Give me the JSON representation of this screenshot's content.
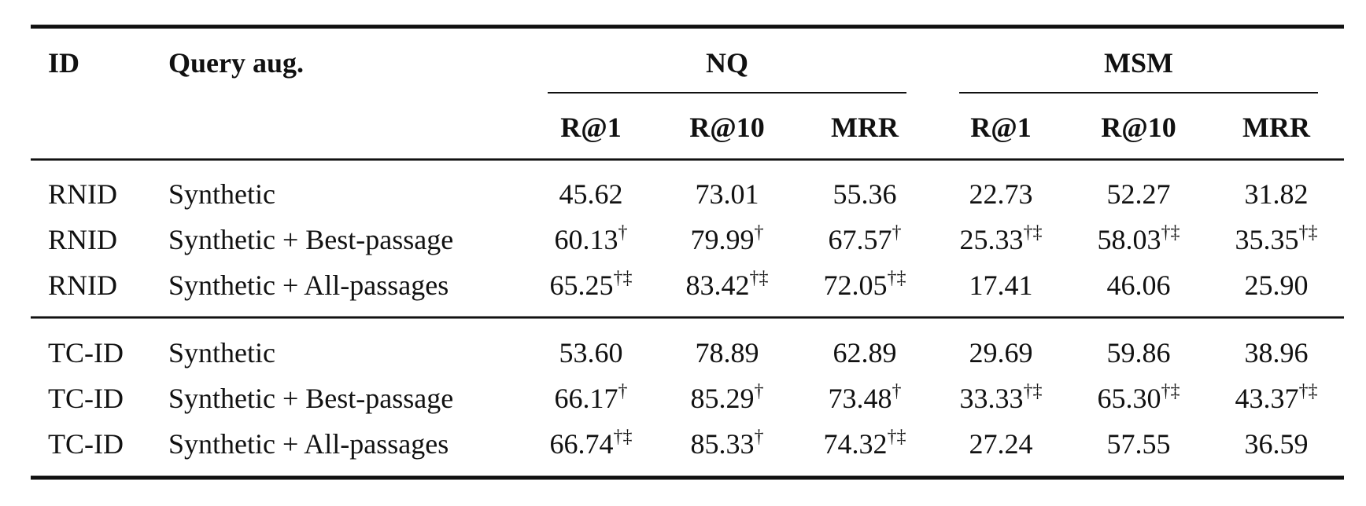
{
  "table": {
    "headers": {
      "id": "ID",
      "query": "Query aug.",
      "groups": [
        "NQ",
        "MSM"
      ],
      "metrics": [
        "R@1",
        "R@10",
        "MRR",
        "R@1",
        "R@10",
        "MRR"
      ]
    },
    "row_groups": [
      [
        {
          "id": "RNID",
          "query": "Synthetic",
          "cells": [
            {
              "v": "45.62"
            },
            {
              "v": "73.01"
            },
            {
              "v": "55.36"
            },
            {
              "v": "22.73"
            },
            {
              "v": "52.27"
            },
            {
              "v": "31.82"
            }
          ]
        },
        {
          "id": "RNID",
          "query": "Synthetic + Best-passage",
          "cells": [
            {
              "v": "60.13",
              "sup": "†"
            },
            {
              "v": "79.99",
              "sup": "†"
            },
            {
              "v": "67.57",
              "sup": "†"
            },
            {
              "v": "25.33",
              "sup": "†‡"
            },
            {
              "v": "58.03",
              "sup": "†‡"
            },
            {
              "v": "35.35",
              "sup": "†‡"
            }
          ]
        },
        {
          "id": "RNID",
          "query": "Synthetic + All-passages",
          "cells": [
            {
              "v": "65.25",
              "sup": "†‡"
            },
            {
              "v": "83.42",
              "sup": "†‡"
            },
            {
              "v": "72.05",
              "sup": "†‡"
            },
            {
              "v": "17.41"
            },
            {
              "v": "46.06"
            },
            {
              "v": "25.90"
            }
          ]
        }
      ],
      [
        {
          "id": "TC-ID",
          "query": "Synthetic",
          "cells": [
            {
              "v": "53.60"
            },
            {
              "v": "78.89"
            },
            {
              "v": "62.89"
            },
            {
              "v": "29.69"
            },
            {
              "v": "59.86"
            },
            {
              "v": "38.96"
            }
          ]
        },
        {
          "id": "TC-ID",
          "query": "Synthetic + Best-passage",
          "cells": [
            {
              "v": "66.17",
              "sup": "†"
            },
            {
              "v": "85.29",
              "sup": "†"
            },
            {
              "v": "73.48",
              "sup": "†"
            },
            {
              "v": "33.33",
              "sup": "†‡"
            },
            {
              "v": "65.30",
              "sup": "†‡"
            },
            {
              "v": "43.37",
              "sup": "†‡"
            }
          ]
        },
        {
          "id": "TC-ID",
          "query": "Synthetic + All-passages",
          "cells": [
            {
              "v": "66.74",
              "sup": "†‡"
            },
            {
              "v": "85.33",
              "sup": "†"
            },
            {
              "v": "74.32",
              "sup": "†‡"
            },
            {
              "v": "27.24"
            },
            {
              "v": "57.55"
            },
            {
              "v": "36.59"
            }
          ]
        }
      ]
    ]
  }
}
